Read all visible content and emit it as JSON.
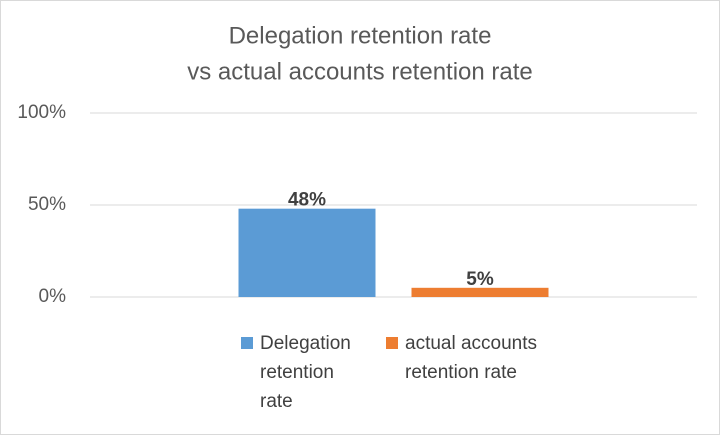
{
  "chart_data": {
    "type": "bar",
    "title": [
      "Delegation retention rate",
      "vs actual accounts retention rate"
    ],
    "categories": [
      null
    ],
    "series": [
      {
        "name": "Delegation retention rate",
        "color": "#5b9bd5",
        "values": [
          48
        ],
        "value_labels": [
          "48%"
        ]
      },
      {
        "name": "actual accounts retention rate",
        "color": "#ed7d31",
        "values": [
          5
        ],
        "value_labels": [
          "5%"
        ]
      }
    ],
    "ylim": [
      0,
      100
    ],
    "yticks": [
      {
        "value": 0,
        "label": "0%"
      },
      {
        "value": 50,
        "label": "50%"
      },
      {
        "value": 100,
        "label": "100%"
      }
    ],
    "grid": true,
    "legend": "bottom"
  }
}
